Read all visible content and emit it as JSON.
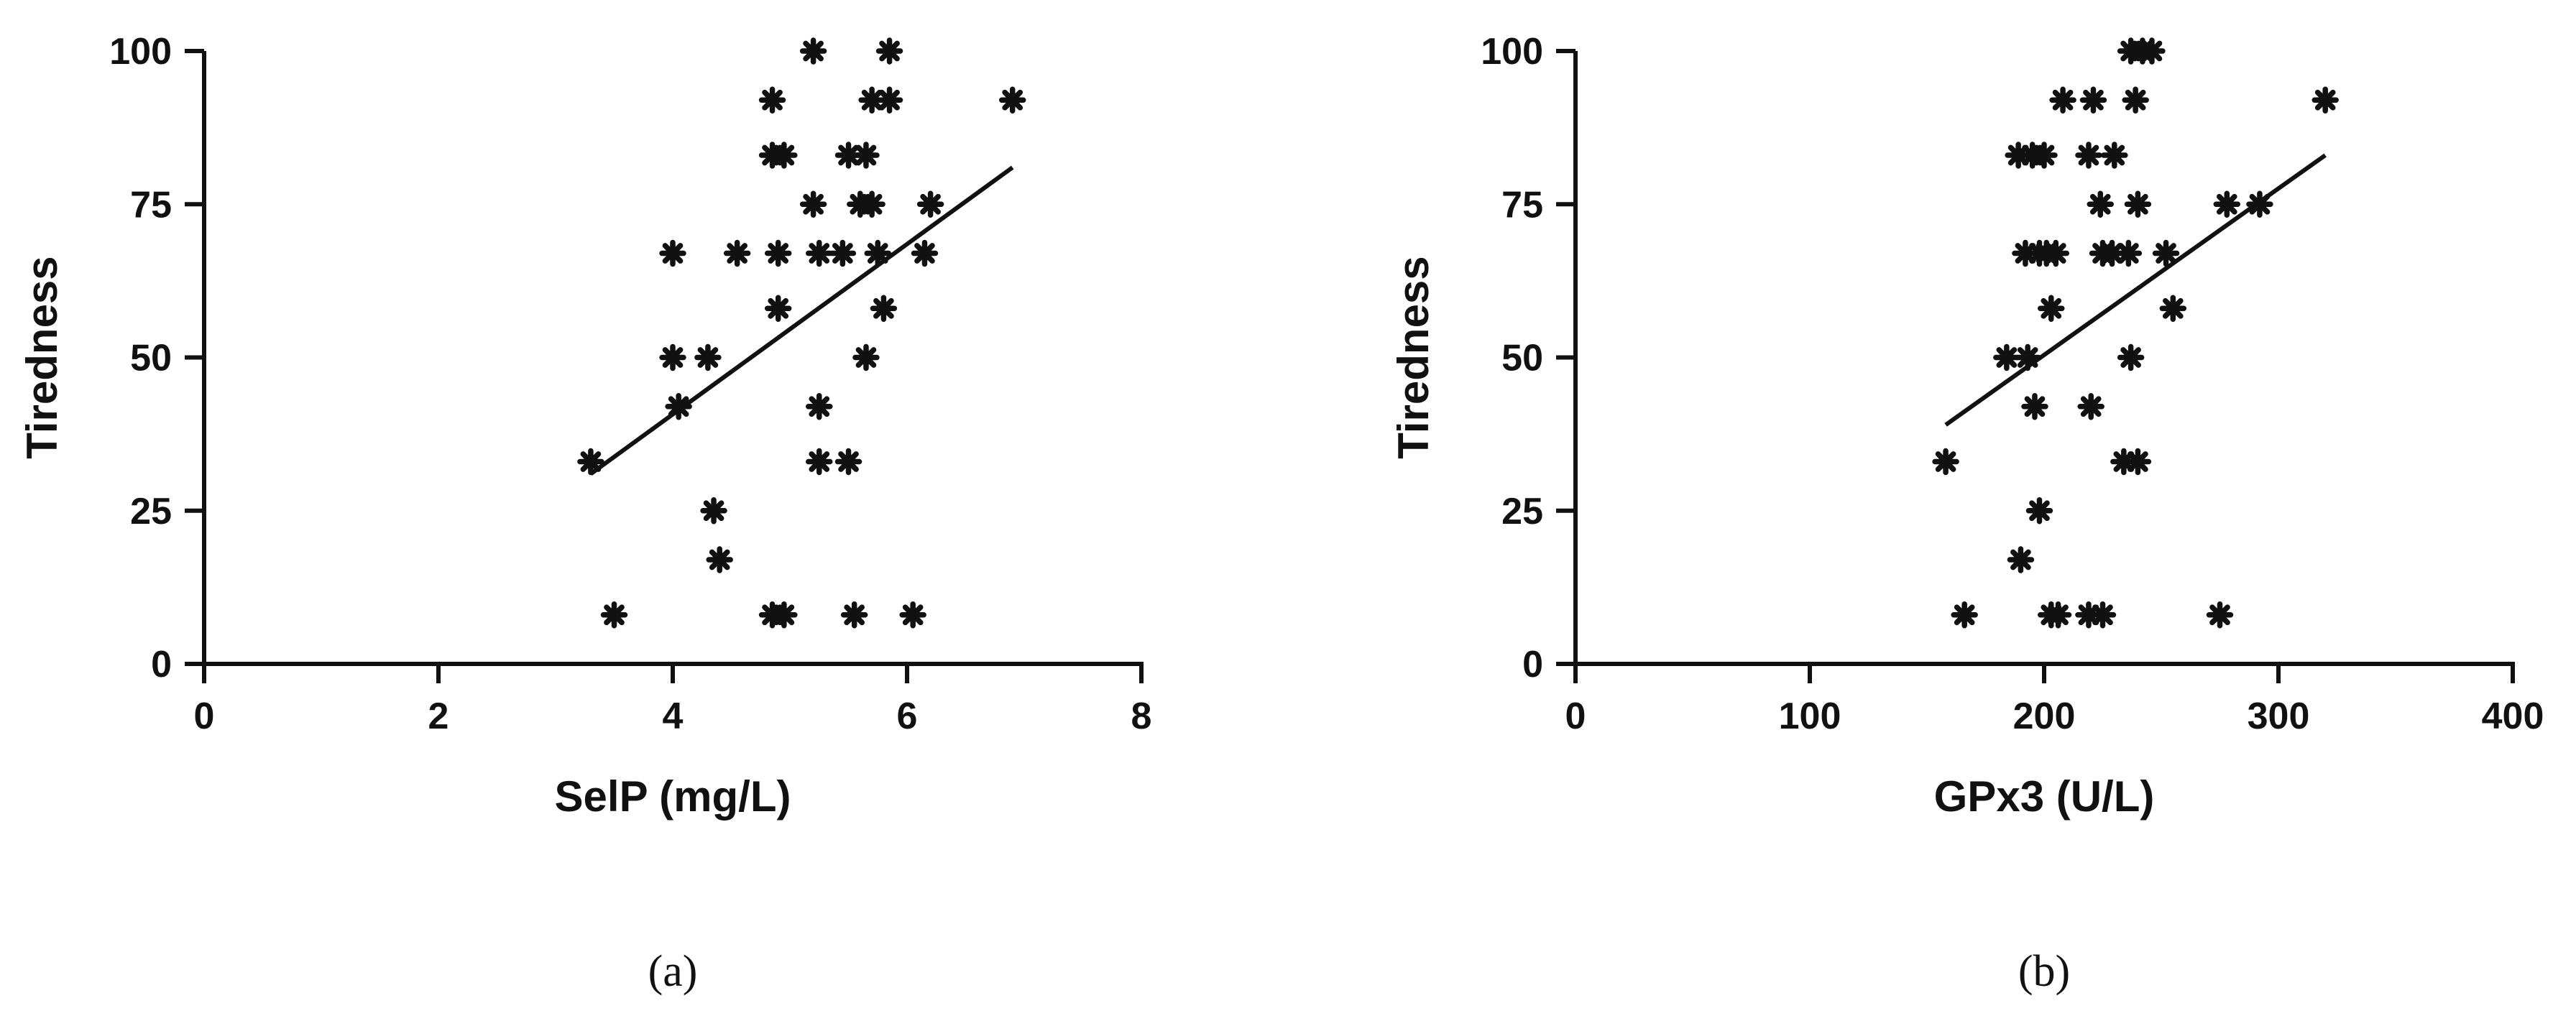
{
  "figure": {
    "colors": {
      "ink": "#111111",
      "background": "#ffffff"
    },
    "marker_icon": "asterisk-marker"
  },
  "chart_data": [
    {
      "type": "scatter",
      "panel_label": "(a)",
      "xlabel": "SelP (mg/L)",
      "ylabel": "Tiredness",
      "xlim": [
        0,
        8
      ],
      "ylim": [
        0,
        100
      ],
      "xticks": [
        "0",
        "2",
        "4",
        "6",
        "8"
      ],
      "yticks": [
        "0",
        "25",
        "50",
        "75",
        "100"
      ],
      "grid": false,
      "legend": "none",
      "points": [
        {
          "x": 3.3,
          "y": 33
        },
        {
          "x": 3.5,
          "y": 8
        },
        {
          "x": 4.0,
          "y": 67
        },
        {
          "x": 4.0,
          "y": 50
        },
        {
          "x": 4.05,
          "y": 42
        },
        {
          "x": 4.3,
          "y": 50
        },
        {
          "x": 4.35,
          "y": 25
        },
        {
          "x": 4.4,
          "y": 17
        },
        {
          "x": 4.55,
          "y": 67
        },
        {
          "x": 4.85,
          "y": 92
        },
        {
          "x": 4.85,
          "y": 83
        },
        {
          "x": 4.95,
          "y": 83
        },
        {
          "x": 4.9,
          "y": 67
        },
        {
          "x": 4.9,
          "y": 58
        },
        {
          "x": 4.85,
          "y": 8
        },
        {
          "x": 4.95,
          "y": 8
        },
        {
          "x": 5.2,
          "y": 100
        },
        {
          "x": 5.2,
          "y": 75
        },
        {
          "x": 5.25,
          "y": 67
        },
        {
          "x": 5.25,
          "y": 42
        },
        {
          "x": 5.25,
          "y": 33
        },
        {
          "x": 5.45,
          "y": 67
        },
        {
          "x": 5.5,
          "y": 83
        },
        {
          "x": 5.5,
          "y": 33
        },
        {
          "x": 5.55,
          "y": 8
        },
        {
          "x": 5.6,
          "y": 75
        },
        {
          "x": 5.65,
          "y": 83
        },
        {
          "x": 5.7,
          "y": 75
        },
        {
          "x": 5.7,
          "y": 92
        },
        {
          "x": 5.65,
          "y": 50
        },
        {
          "x": 5.75,
          "y": 67
        },
        {
          "x": 5.8,
          "y": 58
        },
        {
          "x": 5.85,
          "y": 100
        },
        {
          "x": 5.85,
          "y": 92
        },
        {
          "x": 6.05,
          "y": 8
        },
        {
          "x": 6.15,
          "y": 67
        },
        {
          "x": 6.2,
          "y": 75
        },
        {
          "x": 6.9,
          "y": 92
        }
      ],
      "fit_line": {
        "x": [
          3.3,
          6.9
        ],
        "y": [
          31,
          81
        ]
      }
    },
    {
      "type": "scatter",
      "panel_label": "(b)",
      "xlabel": "GPx3 (U/L)",
      "ylabel": "Tiredness",
      "xlim": [
        0,
        400
      ],
      "ylim": [
        0,
        100
      ],
      "xticks": [
        "0",
        "100",
        "200",
        "300",
        "400"
      ],
      "yticks": [
        "0",
        "25",
        "50",
        "75",
        "100"
      ],
      "grid": false,
      "legend": "none",
      "points": [
        {
          "x": 158,
          "y": 33
        },
        {
          "x": 166,
          "y": 8
        },
        {
          "x": 184,
          "y": 50
        },
        {
          "x": 189,
          "y": 83
        },
        {
          "x": 190,
          "y": 17
        },
        {
          "x": 192,
          "y": 67
        },
        {
          "x": 193,
          "y": 50
        },
        {
          "x": 195,
          "y": 83
        },
        {
          "x": 196,
          "y": 42
        },
        {
          "x": 198,
          "y": 67
        },
        {
          "x": 198,
          "y": 25
        },
        {
          "x": 200,
          "y": 83
        },
        {
          "x": 201,
          "y": 67
        },
        {
          "x": 203,
          "y": 58
        },
        {
          "x": 203,
          "y": 8
        },
        {
          "x": 205,
          "y": 67
        },
        {
          "x": 206,
          "y": 8
        },
        {
          "x": 208,
          "y": 92
        },
        {
          "x": 219,
          "y": 83
        },
        {
          "x": 219,
          "y": 8
        },
        {
          "x": 220,
          "y": 42
        },
        {
          "x": 221,
          "y": 92
        },
        {
          "x": 224,
          "y": 75
        },
        {
          "x": 225,
          "y": 67
        },
        {
          "x": 225,
          "y": 8
        },
        {
          "x": 229,
          "y": 67
        },
        {
          "x": 230,
          "y": 83
        },
        {
          "x": 234,
          "y": 33
        },
        {
          "x": 236,
          "y": 67
        },
        {
          "x": 237,
          "y": 50
        },
        {
          "x": 237,
          "y": 100
        },
        {
          "x": 239,
          "y": 92
        },
        {
          "x": 240,
          "y": 75
        },
        {
          "x": 240,
          "y": 33
        },
        {
          "x": 242,
          "y": 100
        },
        {
          "x": 246,
          "y": 100
        },
        {
          "x": 252,
          "y": 67
        },
        {
          "x": 255,
          "y": 58
        },
        {
          "x": 275,
          "y": 8
        },
        {
          "x": 278,
          "y": 75
        },
        {
          "x": 292,
          "y": 75
        },
        {
          "x": 320,
          "y": 92
        }
      ],
      "fit_line": {
        "x": [
          158,
          320
        ],
        "y": [
          39,
          83
        ]
      }
    }
  ]
}
